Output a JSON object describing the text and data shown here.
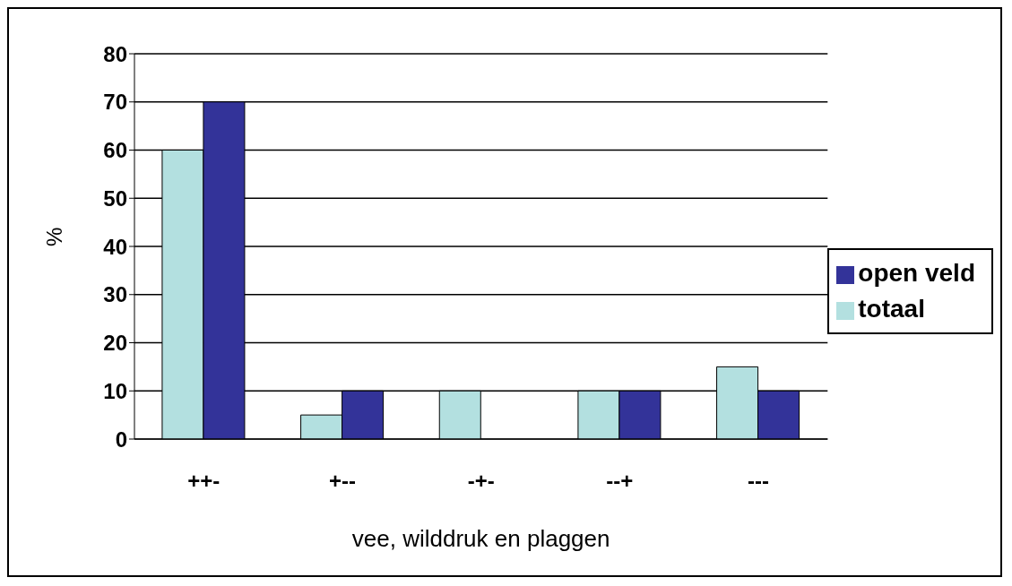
{
  "chart_data": {
    "type": "bar",
    "categories": [
      "++-",
      "+--",
      "-+-",
      "--+",
      "---"
    ],
    "series": [
      {
        "name": "totaal",
        "color": "#b3e0e0",
        "values": [
          60,
          5,
          10,
          10,
          15
        ]
      },
      {
        "name": "open veld",
        "color": "#333399",
        "values": [
          70,
          10,
          0,
          10,
          10
        ]
      }
    ],
    "xlabel": "vee, wilddruk en plaggen",
    "ylabel": "%",
    "ylim": [
      0,
      80
    ],
    "yticks": [
      0,
      10,
      20,
      30,
      40,
      50,
      60,
      70,
      80
    ],
    "grid": "y",
    "legend": "right"
  }
}
